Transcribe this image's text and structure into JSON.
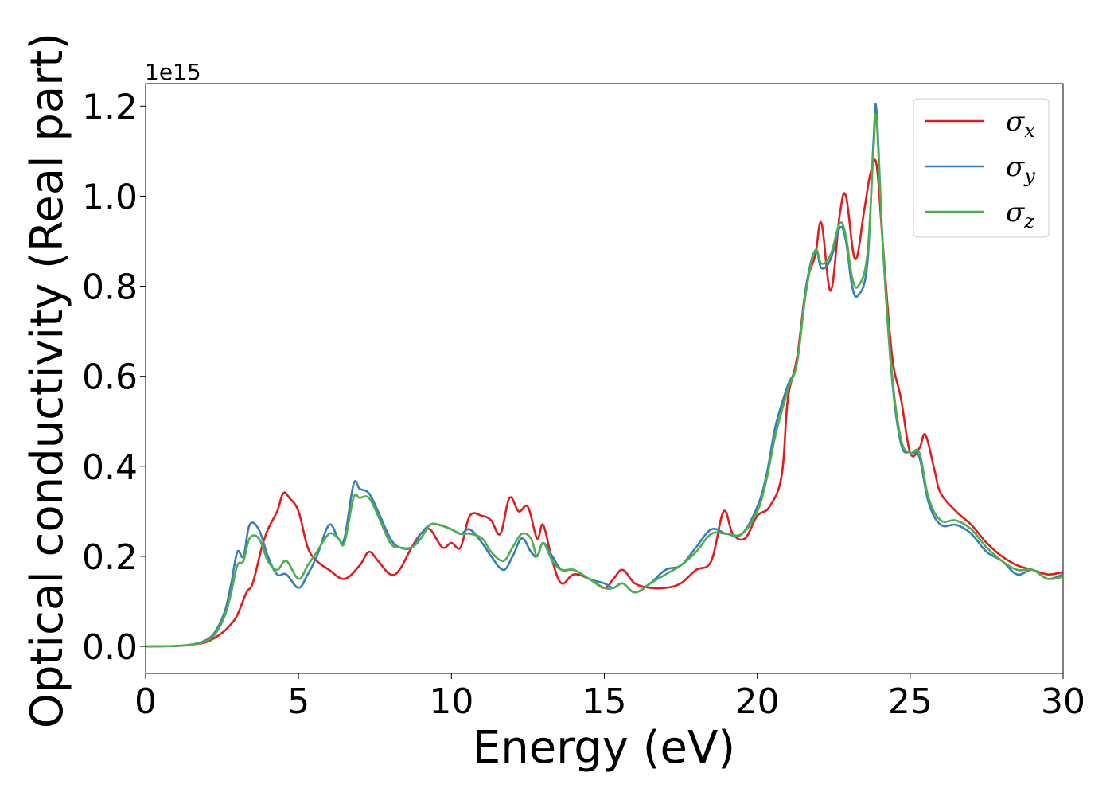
{
  "chart_data": {
    "type": "line",
    "xlabel": "Energy (eV)",
    "ylabel": "Optical conductivity (Real part)",
    "y_offset_text": "1e15",
    "xlim": [
      0,
      30
    ],
    "ylim": [
      -0.06,
      1.25
    ],
    "xticks": [
      0,
      5,
      10,
      15,
      20,
      25,
      30
    ],
    "xtick_labels": [
      "0",
      "5",
      "10",
      "15",
      "20",
      "25",
      "30"
    ],
    "yticks": [
      0.0,
      0.2,
      0.4,
      0.6,
      0.8,
      1.0,
      1.2
    ],
    "ytick_labels": [
      "0.0",
      "0.2",
      "0.4",
      "0.6",
      "0.8",
      "1.0",
      "1.2"
    ],
    "grid": false,
    "legend_position": "top-right",
    "series": [
      {
        "name": "σx",
        "symbol": "σ",
        "subscript": "x",
        "color": "#e41a1c",
        "x": [
          0,
          1,
          1.5,
          2,
          2.5,
          2.8,
          3,
          3.3,
          3.5,
          3.8,
          4,
          4.3,
          4.5,
          4.7,
          5,
          5.3,
          5.6,
          6,
          6.5,
          7,
          7.3,
          7.6,
          8,
          8.3,
          8.7,
          9,
          9.3,
          9.7,
          10,
          10.3,
          10.6,
          11,
          11.3,
          11.6,
          11.9,
          12.2,
          12.5,
          12.8,
          13,
          13.3,
          13.6,
          14,
          14.5,
          15,
          15.3,
          15.6,
          16,
          16.5,
          17,
          17.5,
          18,
          18.5,
          18.9,
          19.2,
          19.6,
          20,
          20.4,
          20.8,
          21,
          21.3,
          21.6,
          21.9,
          22.1,
          22.4,
          22.7,
          22.9,
          23.2,
          23.5,
          23.7,
          23.9,
          24.1,
          24.4,
          24.7,
          25,
          25.3,
          25.5,
          25.8,
          26,
          26.5,
          27,
          27.5,
          28,
          28.5,
          29,
          29.5,
          30
        ],
        "values": [
          0,
          0.001,
          0.004,
          0.01,
          0.03,
          0.05,
          0.07,
          0.12,
          0.14,
          0.22,
          0.26,
          0.3,
          0.34,
          0.33,
          0.3,
          0.22,
          0.19,
          0.17,
          0.15,
          0.18,
          0.21,
          0.19,
          0.16,
          0.17,
          0.22,
          0.25,
          0.26,
          0.22,
          0.23,
          0.22,
          0.29,
          0.29,
          0.28,
          0.25,
          0.33,
          0.3,
          0.31,
          0.24,
          0.27,
          0.19,
          0.14,
          0.16,
          0.15,
          0.13,
          0.15,
          0.17,
          0.14,
          0.13,
          0.13,
          0.14,
          0.17,
          0.19,
          0.3,
          0.25,
          0.24,
          0.29,
          0.31,
          0.38,
          0.55,
          0.64,
          0.8,
          0.87,
          0.94,
          0.79,
          0.96,
          1.0,
          0.86,
          0.97,
          1.05,
          1.07,
          0.9,
          0.65,
          0.55,
          0.43,
          0.44,
          0.47,
          0.39,
          0.34,
          0.3,
          0.27,
          0.23,
          0.2,
          0.18,
          0.17,
          0.16,
          0.165
        ]
      },
      {
        "name": "σy",
        "symbol": "σ",
        "subscript": "y",
        "color": "#377eb8",
        "x": [
          0,
          1,
          1.5,
          2,
          2.3,
          2.6,
          2.8,
          3,
          3.2,
          3.4,
          3.7,
          4,
          4.3,
          4.6,
          5,
          5.3,
          5.6,
          6,
          6.3,
          6.5,
          6.8,
          7,
          7.3,
          7.6,
          8,
          8.3,
          8.7,
          9,
          9.3,
          9.6,
          10,
          10.3,
          10.6,
          11,
          11.3,
          11.7,
          12,
          12.3,
          12.6,
          12.8,
          13,
          13.3,
          13.6,
          14,
          14.5,
          15,
          15.3,
          15.6,
          16,
          16.5,
          17,
          17.5,
          18,
          18.5,
          19,
          19.5,
          20,
          20.3,
          20.6,
          21,
          21.3,
          21.6,
          21.9,
          22.1,
          22.4,
          22.7,
          22.9,
          23.1,
          23.3,
          23.6,
          23.8,
          23.9,
          24.1,
          24.4,
          24.7,
          25,
          25.3,
          25.6,
          26,
          26.5,
          27,
          27.5,
          28,
          28.5,
          29,
          29.5,
          30
        ],
        "values": [
          0,
          0.001,
          0.004,
          0.015,
          0.035,
          0.08,
          0.14,
          0.21,
          0.2,
          0.27,
          0.26,
          0.2,
          0.16,
          0.16,
          0.13,
          0.16,
          0.2,
          0.27,
          0.24,
          0.24,
          0.36,
          0.35,
          0.34,
          0.3,
          0.24,
          0.22,
          0.22,
          0.25,
          0.27,
          0.27,
          0.26,
          0.25,
          0.26,
          0.23,
          0.2,
          0.17,
          0.2,
          0.24,
          0.21,
          0.2,
          0.23,
          0.2,
          0.17,
          0.17,
          0.15,
          0.14,
          0.13,
          0.14,
          0.12,
          0.14,
          0.17,
          0.18,
          0.22,
          0.26,
          0.25,
          0.25,
          0.31,
          0.38,
          0.49,
          0.58,
          0.63,
          0.8,
          0.88,
          0.84,
          0.86,
          0.93,
          0.9,
          0.8,
          0.78,
          0.85,
          1.12,
          1.19,
          0.9,
          0.6,
          0.45,
          0.43,
          0.42,
          0.32,
          0.27,
          0.27,
          0.25,
          0.21,
          0.19,
          0.16,
          0.17,
          0.15,
          0.16
        ]
      },
      {
        "name": "σz",
        "symbol": "σ",
        "subscript": "z",
        "color": "#4daf4a",
        "x": [
          0,
          1,
          1.5,
          2,
          2.3,
          2.6,
          2.8,
          3,
          3.2,
          3.4,
          3.7,
          4,
          4.3,
          4.6,
          5,
          5.3,
          5.6,
          6,
          6.3,
          6.5,
          6.8,
          7,
          7.3,
          7.6,
          8,
          8.3,
          8.7,
          9,
          9.3,
          9.6,
          10,
          10.3,
          10.6,
          11,
          11.3,
          11.7,
          12,
          12.3,
          12.6,
          12.8,
          13,
          13.3,
          13.6,
          14,
          14.5,
          15,
          15.3,
          15.6,
          16,
          16.5,
          17,
          17.5,
          18,
          18.5,
          19,
          19.5,
          20,
          20.3,
          20.6,
          21,
          21.3,
          21.6,
          21.9,
          22.1,
          22.4,
          22.7,
          22.9,
          23.1,
          23.3,
          23.6,
          23.8,
          23.9,
          24.1,
          24.4,
          24.7,
          25,
          25.3,
          25.6,
          26,
          26.5,
          27,
          27.5,
          28,
          28.5,
          29,
          29.5,
          30
        ],
        "values": [
          0,
          0.001,
          0.004,
          0.012,
          0.03,
          0.07,
          0.12,
          0.18,
          0.19,
          0.24,
          0.24,
          0.19,
          0.17,
          0.19,
          0.15,
          0.18,
          0.21,
          0.25,
          0.24,
          0.23,
          0.33,
          0.33,
          0.33,
          0.29,
          0.23,
          0.22,
          0.22,
          0.24,
          0.27,
          0.27,
          0.26,
          0.25,
          0.25,
          0.24,
          0.21,
          0.19,
          0.22,
          0.25,
          0.24,
          0.2,
          0.23,
          0.19,
          0.17,
          0.17,
          0.15,
          0.13,
          0.13,
          0.14,
          0.12,
          0.14,
          0.16,
          0.18,
          0.21,
          0.25,
          0.25,
          0.25,
          0.3,
          0.37,
          0.47,
          0.57,
          0.63,
          0.79,
          0.88,
          0.85,
          0.87,
          0.94,
          0.91,
          0.82,
          0.8,
          0.87,
          1.1,
          1.17,
          0.9,
          0.61,
          0.46,
          0.43,
          0.43,
          0.33,
          0.28,
          0.28,
          0.26,
          0.22,
          0.19,
          0.17,
          0.17,
          0.15,
          0.155
        ]
      }
    ]
  }
}
